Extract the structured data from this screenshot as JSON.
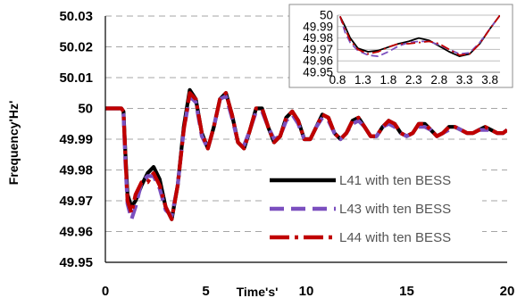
{
  "chart_data": [
    {
      "type": "line",
      "title": "",
      "xlabel": "Time's'",
      "ylabel": "Frequency'Hz'",
      "xlim": [
        0,
        20
      ],
      "ylim": [
        49.95,
        50.03
      ],
      "x_ticks": [
        "0",
        "5",
        "10",
        "15",
        "20"
      ],
      "y_ticks": [
        "49.95",
        "49.96",
        "49.97",
        "49.98",
        "49.99",
        "50",
        "50.01",
        "50.02",
        "50.03"
      ],
      "grid": "horizontal dashed",
      "legend_position": "bottom-right",
      "series": [
        {
          "name": "L41 with ten BESS",
          "color": "#000000",
          "style": "solid",
          "x": [
            0,
            0.8,
            0.9,
            1.0,
            1.1,
            1.3,
            1.5,
            1.8,
            2.1,
            2.4,
            2.7,
            3.0,
            3.3,
            3.6,
            3.9,
            4.2,
            4.5,
            4.8,
            5.1,
            5.4,
            5.7,
            6.0,
            6.3,
            6.6,
            6.9,
            7.2,
            7.5,
            7.8,
            8.1,
            8.4,
            8.7,
            9.0,
            9.3,
            9.6,
            9.9,
            10.2,
            10.5,
            10.8,
            11.1,
            11.4,
            11.7,
            12.0,
            12.3,
            12.6,
            12.9,
            13.2,
            13.5,
            13.8,
            14.1,
            14.4,
            14.7,
            15.0,
            15.3,
            15.6,
            15.9,
            16.2,
            16.5,
            16.8,
            17.1,
            17.4,
            17.7,
            18.0,
            18.3,
            18.6,
            18.9,
            19.2,
            19.5,
            19.8,
            20.0
          ],
          "y": [
            50.0,
            50.0,
            49.999,
            49.985,
            49.972,
            49.968,
            49.97,
            49.975,
            49.979,
            49.981,
            49.977,
            49.968,
            49.964,
            49.975,
            49.994,
            50.006,
            50.003,
            49.992,
            49.987,
            49.994,
            50.003,
            50.005,
            49.998,
            49.989,
            49.987,
            49.993,
            50.0,
            50.0,
            49.994,
            49.989,
            49.991,
            49.997,
            49.999,
            49.996,
            49.99,
            49.99,
            49.994,
            49.998,
            49.997,
            49.992,
            49.99,
            49.992,
            49.996,
            49.997,
            49.994,
            49.991,
            49.991,
            49.994,
            49.996,
            49.995,
            49.992,
            49.991,
            49.992,
            49.995,
            49.995,
            49.993,
            49.991,
            49.992,
            49.994,
            49.994,
            49.993,
            49.992,
            49.992,
            49.993,
            49.994,
            49.993,
            49.992,
            49.992,
            49.993
          ]
        },
        {
          "name": "L43 with ten BESS",
          "color": "#7B4FBF",
          "style": "dashed",
          "x": [
            0,
            0.8,
            0.9,
            1.0,
            1.1,
            1.3,
            1.5,
            1.8,
            2.1,
            2.4,
            2.7,
            3.0,
            3.3,
            3.6,
            3.9,
            4.2,
            4.5,
            4.8,
            5.1,
            5.4,
            5.7,
            6.0,
            6.3,
            6.6,
            6.9,
            7.2,
            7.5,
            7.8,
            8.1,
            8.4,
            8.7,
            9.0,
            9.3,
            9.6,
            9.9,
            10.2,
            10.5,
            10.8,
            11.1,
            11.4,
            11.7,
            12.0,
            12.3,
            12.6,
            12.9,
            13.2,
            13.5,
            13.8,
            14.1,
            14.4,
            14.7,
            15.0,
            15.3,
            15.6,
            15.9,
            16.2,
            16.5,
            16.8,
            17.1,
            17.4,
            17.7,
            18.0,
            18.3,
            18.6,
            18.9,
            19.2,
            19.5,
            19.8,
            20.0
          ],
          "y": [
            50.0,
            50.0,
            49.998,
            49.982,
            49.969,
            49.964,
            49.968,
            49.976,
            49.978,
            49.978,
            49.974,
            49.967,
            49.965,
            49.975,
            49.993,
            50.004,
            50.002,
            49.991,
            49.987,
            49.994,
            50.003,
            50.004,
            49.997,
            49.989,
            49.988,
            49.993,
            49.999,
            49.999,
            49.994,
            49.99,
            49.991,
            49.996,
            49.998,
            49.995,
            49.99,
            49.99,
            49.994,
            49.997,
            49.996,
            49.992,
            49.99,
            49.992,
            49.995,
            49.996,
            49.994,
            49.991,
            49.991,
            49.994,
            49.995,
            49.994,
            49.992,
            49.991,
            49.992,
            49.994,
            49.994,
            49.993,
            49.991,
            49.992,
            49.993,
            49.994,
            49.993,
            49.992,
            49.992,
            49.993,
            49.993,
            49.993,
            49.992,
            49.992,
            49.993
          ]
        },
        {
          "name": "L44 with ten BESS",
          "color": "#C00000",
          "style": "long-dash-dot",
          "x": [
            0,
            0.8,
            0.9,
            1.0,
            1.1,
            1.3,
            1.5,
            1.8,
            2.1,
            2.4,
            2.7,
            3.0,
            3.3,
            3.6,
            3.9,
            4.2,
            4.5,
            4.8,
            5.1,
            5.4,
            5.7,
            6.0,
            6.3,
            6.6,
            6.9,
            7.2,
            7.5,
            7.8,
            8.1,
            8.4,
            8.7,
            9.0,
            9.3,
            9.6,
            9.9,
            10.2,
            10.5,
            10.8,
            11.1,
            11.4,
            11.7,
            12.0,
            12.3,
            12.6,
            12.9,
            13.2,
            13.5,
            13.8,
            14.1,
            14.4,
            14.7,
            15.0,
            15.3,
            15.6,
            15.9,
            16.2,
            16.5,
            16.8,
            17.1,
            17.4,
            17.7,
            18.0,
            18.3,
            18.6,
            18.9,
            19.2,
            19.5,
            19.8,
            20.0
          ],
          "y": [
            50.0,
            50.0,
            49.999,
            49.984,
            49.97,
            49.966,
            49.972,
            49.976,
            49.976,
            49.979,
            49.975,
            49.968,
            49.964,
            49.975,
            49.993,
            50.005,
            50.003,
            49.992,
            49.987,
            49.994,
            50.003,
            50.005,
            49.998,
            49.989,
            49.987,
            49.993,
            50.0,
            50.0,
            49.994,
            49.989,
            49.991,
            49.997,
            49.999,
            49.996,
            49.99,
            49.99,
            49.994,
            49.998,
            49.997,
            49.992,
            49.99,
            49.992,
            49.996,
            49.997,
            49.994,
            49.991,
            49.991,
            49.994,
            49.996,
            49.995,
            49.992,
            49.991,
            49.992,
            49.995,
            49.995,
            49.993,
            49.991,
            49.992,
            49.994,
            49.994,
            49.993,
            49.992,
            49.992,
            49.993,
            49.994,
            49.993,
            49.992,
            49.992,
            49.993
          ]
        }
      ]
    },
    {
      "type": "line",
      "title": "",
      "xlim": [
        0.8,
        4.0
      ],
      "ylim": [
        49.95,
        50.0
      ],
      "x_ticks": [
        "0.8",
        "1.3",
        "1.8",
        "2.3",
        "2.8",
        "3.3",
        "3.8"
      ],
      "y_ticks": [
        "49.95",
        "49.96",
        "49.97",
        "49.98",
        "49.99",
        "50"
      ],
      "grid": "horizontal solid",
      "series": [
        {
          "color": "#000000",
          "style": "solid",
          "x": [
            0.85,
            0.95,
            1.05,
            1.2,
            1.4,
            1.6,
            1.8,
            2.0,
            2.2,
            2.4,
            2.6,
            2.8,
            3.0,
            3.2,
            3.4,
            3.6,
            3.8,
            4.0
          ],
          "y": [
            49.999,
            49.99,
            49.98,
            49.971,
            49.968,
            49.969,
            49.972,
            49.975,
            49.977,
            49.98,
            49.978,
            49.973,
            49.968,
            49.964,
            49.966,
            49.975,
            49.988,
            50.0
          ]
        },
        {
          "color": "#7B4FBF",
          "style": "dashed",
          "x": [
            0.85,
            0.95,
            1.05,
            1.2,
            1.4,
            1.6,
            1.8,
            2.0,
            2.2,
            2.4,
            2.6,
            2.8,
            3.0,
            3.2,
            3.4,
            3.6,
            3.8,
            4.0
          ],
          "y": [
            49.999,
            49.985,
            49.976,
            49.969,
            49.965,
            49.964,
            49.968,
            49.973,
            49.976,
            49.977,
            49.977,
            49.974,
            49.97,
            49.966,
            49.967,
            49.976,
            49.988,
            50.0
          ]
        },
        {
          "color": "#C00000",
          "style": "long-dash-dot",
          "x": [
            0.85,
            0.95,
            1.05,
            1.2,
            1.4,
            1.6,
            1.8,
            2.0,
            2.2,
            2.4,
            2.6,
            2.8,
            3.0,
            3.2,
            3.4,
            3.6,
            3.8,
            4.0
          ],
          "y": [
            49.999,
            49.988,
            49.978,
            49.97,
            49.966,
            49.968,
            49.972,
            49.975,
            49.975,
            49.976,
            49.977,
            49.975,
            49.97,
            49.965,
            49.966,
            49.975,
            49.988,
            50.0
          ]
        }
      ]
    }
  ]
}
